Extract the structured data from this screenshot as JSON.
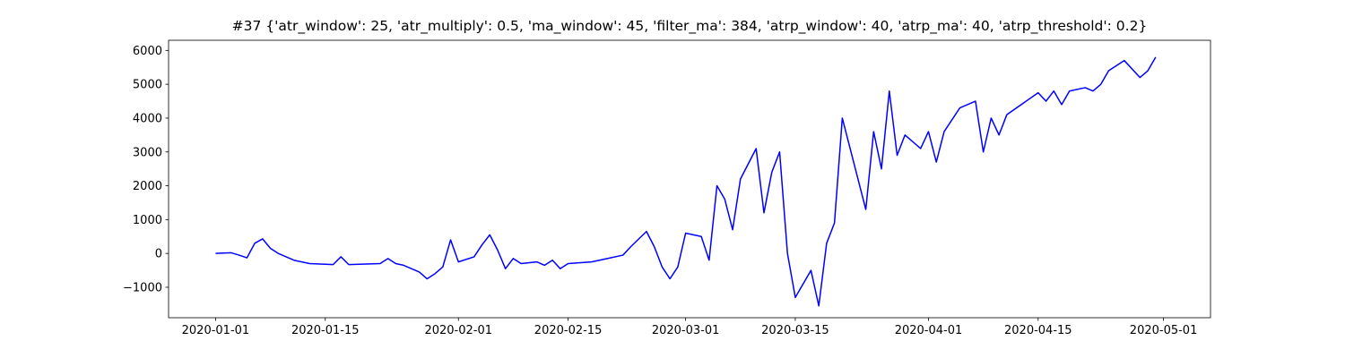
{
  "chart_data": {
    "type": "line",
    "title": "#37 {'atr_window': 25, 'atr_multiply': 0.5, 'ma_window': 45, 'filter_ma': 384, 'atrp_window': 40, 'atrp_ma': 40, 'atrp_threshold': 0.2}",
    "x": [
      "2020-01-01",
      "2020-01-03",
      "2020-01-04",
      "2020-01-05",
      "2020-01-06",
      "2020-01-07",
      "2020-01-08",
      "2020-01-09",
      "2020-01-10",
      "2020-01-11",
      "2020-01-12",
      "2020-01-13",
      "2020-01-16",
      "2020-01-17",
      "2020-01-18",
      "2020-01-22",
      "2020-01-23",
      "2020-01-24",
      "2020-01-25",
      "2020-01-27",
      "2020-01-28",
      "2020-01-29",
      "2020-01-30",
      "2020-01-31",
      "2020-02-01",
      "2020-02-03",
      "2020-02-04",
      "2020-02-05",
      "2020-02-06",
      "2020-02-07",
      "2020-02-08",
      "2020-02-09",
      "2020-02-11",
      "2020-02-12",
      "2020-02-13",
      "2020-02-14",
      "2020-02-15",
      "2020-02-18",
      "2020-02-20",
      "2020-02-22",
      "2020-02-23",
      "2020-02-25",
      "2020-02-26",
      "2020-02-27",
      "2020-02-28",
      "2020-02-29",
      "2020-03-01",
      "2020-03-03",
      "2020-03-04",
      "2020-03-05",
      "2020-03-06",
      "2020-03-07",
      "2020-03-08",
      "2020-03-10",
      "2020-03-11",
      "2020-03-12",
      "2020-03-13",
      "2020-03-14",
      "2020-03-15",
      "2020-03-17",
      "2020-03-18",
      "2020-03-19",
      "2020-03-20",
      "2020-03-21",
      "2020-03-22",
      "2020-03-24",
      "2020-03-25",
      "2020-03-26",
      "2020-03-27",
      "2020-03-28",
      "2020-03-29",
      "2020-03-31",
      "2020-04-01",
      "2020-04-02",
      "2020-04-03",
      "2020-04-05",
      "2020-04-07",
      "2020-04-08",
      "2020-04-09",
      "2020-04-10",
      "2020-04-11",
      "2020-04-15",
      "2020-04-16",
      "2020-04-17",
      "2020-04-18",
      "2020-04-19",
      "2020-04-21",
      "2020-04-22",
      "2020-04-23",
      "2020-04-24",
      "2020-04-26",
      "2020-04-28",
      "2020-04-29",
      "2020-04-30"
    ],
    "series": [
      {
        "color": "#0000ff",
        "values": [
          0,
          20,
          -50,
          -130,
          300,
          430,
          150,
          0,
          -100,
          -200,
          -250,
          -300,
          -330,
          -100,
          -330,
          -300,
          -150,
          -300,
          -350,
          -550,
          -750,
          -600,
          -400,
          400,
          -250,
          -100,
          250,
          550,
          100,
          -450,
          -150,
          -300,
          -250,
          -350,
          -200,
          -450,
          -300,
          -250,
          -150,
          -50,
          200,
          650,
          200,
          -400,
          -750,
          -400,
          600,
          500,
          -200,
          2000,
          1600,
          700,
          2200,
          3100,
          1200,
          2400,
          3000,
          0,
          -1300,
          -500,
          -1550,
          300,
          900,
          4000,
          3100,
          1300,
          3600,
          2500,
          4800,
          2900,
          3500,
          3100,
          3600,
          2700,
          3600,
          4300,
          4500,
          3000,
          4000,
          3500,
          4100,
          4750,
          4500,
          4800,
          4400,
          4800,
          4900,
          4800,
          5000,
          5400,
          5700,
          5200,
          5400,
          5800
        ]
      }
    ],
    "xlim": [
      "2019-12-26",
      "2020-05-07"
    ],
    "xticks": [
      "2020-01-01",
      "2020-01-15",
      "2020-02-01",
      "2020-02-15",
      "2020-03-01",
      "2020-03-15",
      "2020-04-01",
      "2020-04-15",
      "2020-05-01"
    ],
    "ylim": [
      -1900,
      6300
    ],
    "yticks": [
      {
        "value": -1000,
        "label": "−1000"
      },
      0,
      1000,
      2000,
      3000,
      4000,
      5000,
      6000
    ]
  }
}
